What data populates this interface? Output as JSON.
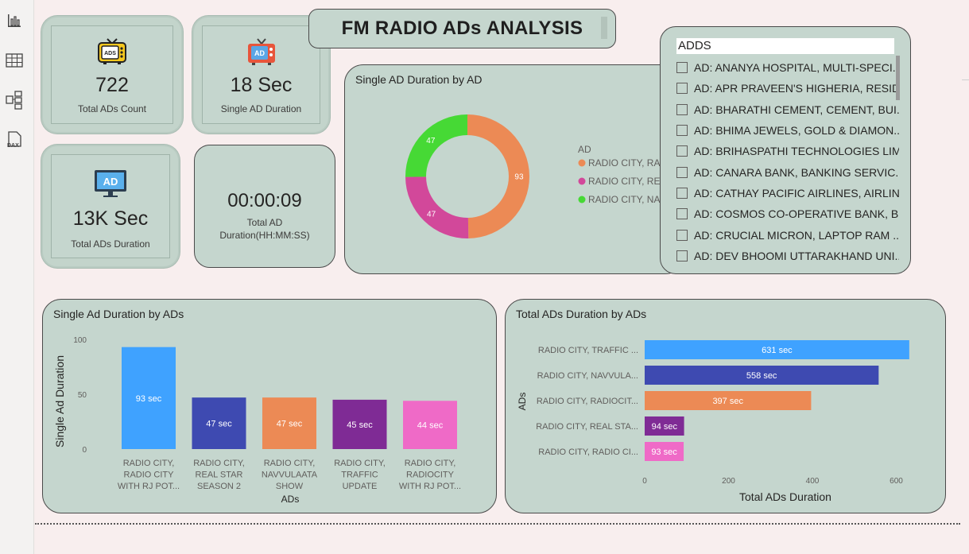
{
  "report_title": "FM RADIO ADs ANALYSIS",
  "kpis": {
    "total_ads_count": {
      "value": "722",
      "label": "Total ADs Count",
      "icon": "tv-ads-icon"
    },
    "single_ad_duration": {
      "value": "18 Sec",
      "label": "Single AD Duration",
      "icon": "retro-tv-ad-icon"
    },
    "total_ads_duration": {
      "value": "13K Sec",
      "label": "Total ADs Duration",
      "icon": "monitor-ad-icon"
    },
    "total_ad_duration_hms": {
      "value": "00:00:09",
      "label_line1": "Total AD",
      "label_line2": "Duration(HH:MM:SS)"
    }
  },
  "slicer": {
    "header": "ADDS",
    "items": [
      "AD: ANANYA HOSPITAL, MULTI-SPECI...",
      "AD: APR PRAVEEN'S HIGHERIA, RESIDE...",
      "AD: BHARATHI CEMENT, CEMENT, BUI...",
      "AD: BHIMA JEWELS, GOLD & DIAMON...",
      "AD: BRIHASPATHI TECHNOLOGIES LIM...",
      "AD: CANARA BANK, BANKING SERVIC...",
      "AD: CATHAY PACIFIC AIRLINES, AIRLIN...",
      "AD: COSMOS CO-OPERATIVE BANK, B...",
      "AD: CRUCIAL MICRON, LAPTOP RAM ...",
      "AD: DEV BHOOMI UTTARAKHAND UNI..."
    ]
  },
  "chart_data": [
    {
      "type": "pie",
      "title": "Single AD Duration by AD",
      "legend_title": "AD",
      "legend_position": "right",
      "categories": [
        "RADIO CITY, RA...",
        "RADIO CITY, RE...",
        "RADIO CITY, NA..."
      ],
      "values": [
        93,
        47,
        47
      ],
      "colors": [
        "#ec8a55",
        "#d2489a",
        "#46d935"
      ]
    },
    {
      "type": "bar",
      "title": "Single Ad Duration by ADs",
      "xlabel": "ADs",
      "ylabel": "Single Ad Duration",
      "ylim": [
        0,
        100
      ],
      "yticks": [
        "0",
        "50",
        "100"
      ],
      "categories": [
        [
          "RADIO CITY,",
          "RADIO CITY",
          "WITH RJ POT..."
        ],
        [
          "RADIO CITY,",
          "REAL STAR",
          "SEASON 2"
        ],
        [
          "RADIO CITY,",
          "NAVVULAATA",
          "SHOW"
        ],
        [
          "RADIO CITY,",
          "TRAFFIC",
          "UPDATE"
        ],
        [
          "RADIO CITY,",
          "RADIOCITY",
          "WITH RJ POT..."
        ]
      ],
      "values": [
        93,
        47,
        47,
        45,
        44
      ],
      "data_labels": [
        "93 sec",
        "47 sec",
        "47 sec",
        "45 sec",
        "44 sec"
      ],
      "colors": [
        "#3fa2ff",
        "#3e4ab1",
        "#ec8a55",
        "#7f2b95",
        "#ef6ac7"
      ]
    },
    {
      "type": "bar",
      "orientation": "horizontal",
      "title": "Total ADs Duration by ADs",
      "xlabel": "Total ADs Duration",
      "ylabel": "ADs",
      "xlim": [
        0,
        700
      ],
      "xticks": [
        "0",
        "200",
        "400",
        "600"
      ],
      "categories": [
        "RADIO CITY, TRAFFIC ...",
        "RADIO CITY, NAVVULA...",
        "RADIO CITY, RADIOCIT...",
        "RADIO CITY, REAL STA...",
        "RADIO CITY, RADIO CI..."
      ],
      "values": [
        631,
        558,
        397,
        94,
        93
      ],
      "data_labels": [
        "631 sec",
        "558 sec",
        "397 sec",
        "94 sec",
        "93 sec"
      ],
      "colors": [
        "#3fa2ff",
        "#3e4ab1",
        "#ec8a55",
        "#7f2b95",
        "#ef6ac7"
      ]
    }
  ]
}
